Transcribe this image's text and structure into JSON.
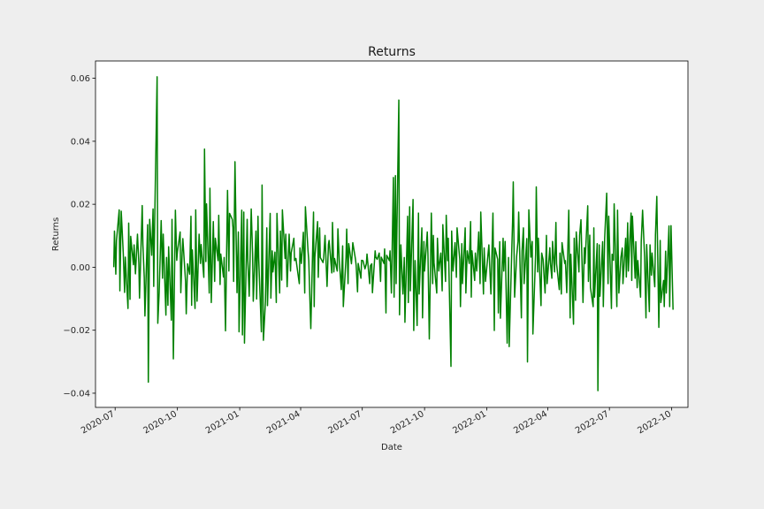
{
  "chart_data": {
    "type": "line",
    "title": "Returns",
    "xlabel": "Date",
    "ylabel": "Returns",
    "x_start": "2020-06-29",
    "x_end": "2022-10-03",
    "xlim": [
      "2020-06-02",
      "2022-10-25"
    ],
    "ylim": [
      -0.0445,
      0.0655
    ],
    "x_ticks": [
      "2020-07",
      "2020-10",
      "2021-01",
      "2021-04",
      "2021-07",
      "2021-10",
      "2022-01",
      "2022-04",
      "2022-07",
      "2022-10"
    ],
    "x_tick_dates": [
      "2020-07-01",
      "2020-10-01",
      "2021-01-01",
      "2021-04-01",
      "2021-07-01",
      "2021-10-01",
      "2022-01-01",
      "2022-04-01",
      "2022-07-01",
      "2022-10-01"
    ],
    "y_ticks": [
      0.06,
      0.04,
      0.02,
      0.0,
      -0.02,
      -0.04
    ],
    "y_tick_labels": [
      "0.06",
      "0.04",
      "0.02",
      "0.00",
      "−0.02",
      "−0.04"
    ],
    "grid": false,
    "series": [
      {
        "color": "#008000",
        "values": [
          0.0,
          0.0115,
          -0.0022,
          0.0085,
          0.0182,
          -0.0075,
          0.0178,
          0.0045,
          -0.008,
          0.0032,
          -0.0131,
          0.014,
          -0.0102,
          0.0098,
          0.0008,
          0.0071,
          -0.0021,
          0.0105,
          0.0012,
          -0.0098,
          0.0196,
          0.0072,
          -0.0032,
          -0.0155,
          0.0135,
          -0.0365,
          0.0152,
          0.0038,
          0.0185,
          -0.0061,
          0.0092,
          0.0605,
          -0.0178,
          -0.0082,
          0.0148,
          -0.0035,
          0.0105,
          -0.0152,
          0.0031,
          -0.0121,
          0.0065,
          -0.0168,
          0.0152,
          -0.0291,
          0.0181,
          0.0022,
          0.0049,
          0.0112,
          -0.0081,
          0.0048,
          0.0091,
          -0.0045,
          -0.0148,
          0.0011,
          -0.0022,
          0.0162,
          -0.0121,
          0.0055,
          -0.0131,
          0.0182,
          -0.0108,
          0.0105,
          0.0012,
          0.0072,
          -0.0032,
          0.0375,
          0.0018,
          0.0201,
          -0.0082,
          0.0251,
          -0.0112,
          0.0145,
          -0.0045,
          0.0092,
          0.0021,
          0.0165,
          -0.0055,
          0.0042,
          -0.0031,
          0.0031,
          -0.0202,
          0.0244,
          -0.0012,
          0.0171,
          0.0152,
          0.0125,
          -0.0045,
          0.0335,
          -0.0081,
          0.0112,
          -0.0205,
          0.0181,
          -0.0215,
          0.0175,
          -0.0241,
          0.0152,
          0.0021,
          -0.0092,
          0.0185,
          0.0042,
          -0.0108,
          0.0115,
          -0.0101,
          0.0162,
          0.0031,
          -0.0205,
          0.0261,
          -0.0232,
          -0.0108,
          0.0125,
          -0.0122,
          0.0171,
          -0.0098,
          0.0052,
          -0.0015,
          0.0048,
          -0.0112,
          0.0171,
          -0.0082,
          0.0115,
          -0.0041,
          0.0182,
          0.0028,
          0.0105,
          -0.0062,
          0.0105,
          -0.0012,
          0.0045,
          0.0092,
          0.0021,
          0.0028,
          0.0011,
          -0.0052,
          0.0061,
          0.0012,
          0.0111,
          -0.0082,
          0.0192,
          0.0049,
          0.0021,
          -0.0128,
          -0.0195,
          0.0175,
          -0.0125,
          0.0032,
          0.0145,
          -0.0032,
          0.0125,
          0.0031,
          0.0015,
          0.0028,
          0.0101,
          -0.0061,
          0.0072,
          0.0085,
          -0.0018,
          0.0142,
          -0.0015,
          0.0028,
          -0.0012,
          0.0122,
          0.0022,
          -0.0071,
          0.0068,
          -0.0125,
          0.0031,
          0.0121,
          -0.0052,
          0.0075,
          0.0011,
          0.0041,
          0.0078,
          0.0025,
          0.0005,
          -0.0078,
          0.0012,
          -0.0035,
          0.0022,
          0.0021,
          -0.0005,
          0.0011,
          0.0042,
          -0.0052,
          0.0005,
          0.0011,
          -0.0081,
          0.0052,
          0.0032,
          0.0025,
          0.0045,
          -0.0045,
          0.0032,
          0.0012,
          0.0058,
          -0.0145,
          0.0038,
          0.0021,
          0.0052,
          -0.0082,
          0.0285,
          -0.0095,
          0.0291,
          -0.0052,
          0.0531,
          -0.0151,
          0.0071,
          -0.0085,
          0.0031,
          -0.0175,
          0.0162,
          -0.0112,
          0.0192,
          -0.0075,
          0.0215,
          -0.0201,
          0.0021,
          -0.0185,
          0.0172,
          -0.0085,
          0.0125,
          -0.0161,
          0.0082,
          -0.0012,
          0.0112,
          0.0042,
          -0.0228,
          0.0172,
          -0.0052,
          0.0101,
          0.0015,
          -0.0082,
          0.0092,
          -0.0012,
          0.0045,
          -0.0075,
          0.0135,
          -0.0045,
          0.0165,
          0.0021,
          0.0092,
          -0.0315,
          0.0115,
          -0.0012,
          0.0078,
          -0.0032,
          0.0125,
          0.0025,
          -0.0125,
          0.0075,
          -0.0052,
          0.0125,
          -0.0082,
          0.0052,
          0.0012,
          0.0145,
          -0.0095,
          0.0052,
          -0.0042,
          0.0045,
          -0.0012,
          0.0112,
          -0.0052,
          0.0175,
          -0.0085,
          0.0061,
          -0.0045,
          -0.0021,
          0.0071,
          0.0015,
          -0.0085,
          0.0172,
          -0.0201,
          0.0061,
          0.0025,
          -0.0145,
          0.0081,
          -0.0162,
          0.0092,
          -0.0012,
          0.0082,
          -0.0241,
          0.0031,
          -0.0252,
          0.0071,
          0.0145,
          0.0271,
          -0.0095,
          0.0035,
          0.0082,
          0.0175,
          -0.0161,
          0.0052,
          0.0125,
          -0.0052,
          0.0091,
          -0.0301,
          0.0182,
          0.0032,
          0.0082,
          -0.0212,
          0.0042,
          0.0255,
          -0.0015,
          0.0092,
          -0.0122,
          0.0045,
          0.0025,
          -0.0082,
          0.0101,
          -0.0052,
          0.0062,
          0.0011,
          -0.0035,
          0.0082,
          -0.0015,
          0.0142,
          0.0011,
          -0.0071,
          0.0045,
          -0.0085,
          0.0078,
          0.0012,
          0.0021,
          -0.0081,
          0.0181,
          -0.0161,
          0.0041,
          -0.0181,
          0.0092,
          -0.0105,
          0.0112,
          -0.0015,
          0.0101,
          0.0151,
          -0.0112,
          0.0062,
          0.0012,
          0.0195,
          -0.0045,
          0.0102,
          -0.0065,
          -0.0125,
          0.0125,
          -0.0095,
          0.0075,
          -0.0392,
          0.0071,
          -0.0092,
          0.0081,
          -0.0125,
          0.0092,
          0.0235,
          -0.0052,
          0.0162,
          -0.0131,
          0.0041,
          0.0022,
          0.0201,
          -0.0125,
          0.0181,
          -0.0082,
          0.0031,
          0.0061,
          -0.0052,
          0.0092,
          -0.0031,
          0.0141,
          -0.0012,
          0.0172,
          -0.0042,
          0.0162,
          -0.0035,
          0.0081,
          -0.0065,
          0.0021,
          -0.0095,
          0.0081,
          0.0181,
          0.0031,
          -0.0161,
          0.0072,
          -0.0141,
          0.0071,
          -0.0025,
          0.0045,
          -0.0062,
          0.0102,
          0.0225,
          -0.0191,
          0.0085,
          -0.0112,
          -0.0042,
          -0.0125,
          0.0051,
          -0.0082,
          0.0131,
          -0.0125,
          0.0132,
          -0.0135
        ]
      }
    ]
  }
}
